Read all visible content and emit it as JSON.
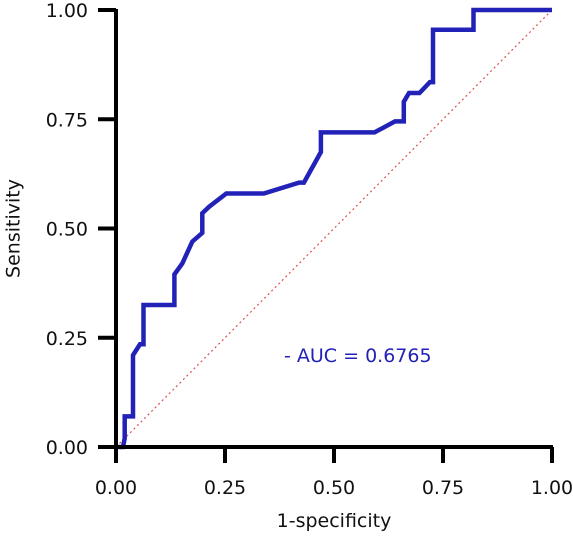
{
  "chart_data": {
    "type": "line",
    "title": "",
    "xlabel": "1-specificity",
    "ylabel": "Sensitivity",
    "xlim": [
      0,
      1
    ],
    "ylim": [
      0,
      1
    ],
    "x_ticks": [
      "0.00",
      "0.25",
      "0.50",
      "0.75",
      "1.00"
    ],
    "y_ticks": [
      "0.00",
      "0.25",
      "0.50",
      "0.75",
      "1.00"
    ],
    "grid": false,
    "annotation": "- AUC = 0.6765",
    "colors": {
      "roc_line": "#2222b8",
      "reference_line": "#d9534f",
      "annotation": "#2222b8",
      "axis": "#000000"
    },
    "series": [
      {
        "style": "solid",
        "x": [
          0.0,
          0.016,
          0.02,
          0.02,
          0.039,
          0.039,
          0.055,
          0.063,
          0.063,
          0.134,
          0.134,
          0.152,
          0.175,
          0.198,
          0.198,
          0.214,
          0.253,
          0.339,
          0.42,
          0.431,
          0.47,
          0.47,
          0.593,
          0.64,
          0.66,
          0.66,
          0.672,
          0.696,
          0.72,
          0.727,
          0.727,
          0.82,
          0.82,
          1.0
        ],
        "y": [
          0.0,
          0.0,
          0.02,
          0.07,
          0.07,
          0.21,
          0.235,
          0.235,
          0.325,
          0.325,
          0.395,
          0.42,
          0.47,
          0.49,
          0.535,
          0.55,
          0.58,
          0.58,
          0.605,
          0.605,
          0.675,
          0.72,
          0.72,
          0.745,
          0.745,
          0.79,
          0.81,
          0.81,
          0.835,
          0.835,
          0.955,
          0.955,
          1.0,
          1.0
        ]
      },
      {
        "style": "dotted",
        "x": [
          0,
          1
        ],
        "y": [
          0,
          1
        ]
      }
    ]
  }
}
